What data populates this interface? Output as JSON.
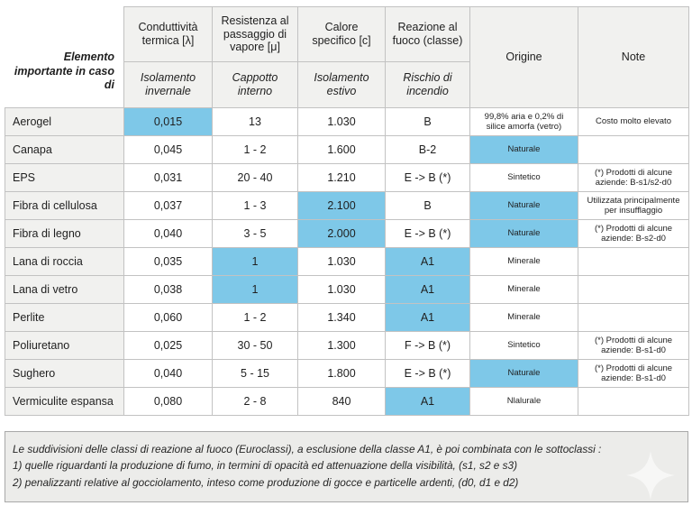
{
  "colors": {
    "highlight_blue": "#7ec8e8",
    "header_gray": "#f1f1ef",
    "border_gray": "#c2c2c2",
    "footer_gray": "#ececea"
  },
  "table": {
    "corner_label": "Elemento importante in caso di",
    "columns": [
      {
        "title": "Conduttività termica [λ]",
        "subtitle": "Isolamento invernale"
      },
      {
        "title": "Resistenza al passaggio di vapore [μ]",
        "subtitle": "Cappotto interno"
      },
      {
        "title": "Calore specifico [c]",
        "subtitle": "Isolamento estivo"
      },
      {
        "title": "Reazione al fuoco (classe)",
        "subtitle": "Rischio di incendio"
      },
      {
        "title": "Origine",
        "subtitle": ""
      },
      {
        "title": "Note",
        "subtitle": ""
      }
    ],
    "rows": [
      {
        "label": "Aerogel",
        "cells": [
          {
            "v": "0,015",
            "h": true
          },
          {
            "v": "13",
            "h": false
          },
          {
            "v": "1.030",
            "h": false
          },
          {
            "v": "B",
            "h": false
          },
          {
            "v": "99,8% aria e 0,2% di silice amorfa (vetro)",
            "h": false
          },
          {
            "v": "Costo molto elevato",
            "h": false
          }
        ]
      },
      {
        "label": "Canapa",
        "cells": [
          {
            "v": "0,045",
            "h": false
          },
          {
            "v": "1 - 2",
            "h": false
          },
          {
            "v": "1.600",
            "h": false
          },
          {
            "v": "B-2",
            "h": false
          },
          {
            "v": "Naturale",
            "h": true
          },
          {
            "v": "",
            "h": false
          }
        ]
      },
      {
        "label": "EPS",
        "cells": [
          {
            "v": "0,031",
            "h": false
          },
          {
            "v": "20 - 40",
            "h": false
          },
          {
            "v": "1.210",
            "h": false
          },
          {
            "v": "E -> B (*)",
            "h": false
          },
          {
            "v": "Sintetico",
            "h": false
          },
          {
            "v": "(*) Prodotti di alcune aziende: B-s1/s2-d0",
            "h": false
          }
        ]
      },
      {
        "label": "Fibra di cellulosa",
        "cells": [
          {
            "v": "0,037",
            "h": false
          },
          {
            "v": "1 - 3",
            "h": false
          },
          {
            "v": "2.100",
            "h": true
          },
          {
            "v": "B",
            "h": false
          },
          {
            "v": "Naturale",
            "h": true
          },
          {
            "v": "Utilizzata principalmente per insufflaggio",
            "h": false
          }
        ]
      },
      {
        "label": "Fibra di legno",
        "cells": [
          {
            "v": "0,040",
            "h": false
          },
          {
            "v": "3 - 5",
            "h": false
          },
          {
            "v": "2.000",
            "h": true
          },
          {
            "v": "E -> B (*)",
            "h": false
          },
          {
            "v": "Naturale",
            "h": true
          },
          {
            "v": "(*) Prodotti di alcune aziende: B-s2-d0",
            "h": false
          }
        ]
      },
      {
        "label": "Lana di roccia",
        "cells": [
          {
            "v": "0,035",
            "h": false
          },
          {
            "v": "1",
            "h": true
          },
          {
            "v": "1.030",
            "h": false
          },
          {
            "v": "A1",
            "h": true
          },
          {
            "v": "Minerale",
            "h": false
          },
          {
            "v": "",
            "h": false
          }
        ]
      },
      {
        "label": "Lana di vetro",
        "cells": [
          {
            "v": "0,038",
            "h": false
          },
          {
            "v": "1",
            "h": true
          },
          {
            "v": "1.030",
            "h": false
          },
          {
            "v": "A1",
            "h": true
          },
          {
            "v": "Minerale",
            "h": false
          },
          {
            "v": "",
            "h": false
          }
        ]
      },
      {
        "label": "Perlite",
        "cells": [
          {
            "v": "0,060",
            "h": false
          },
          {
            "v": "1 - 2",
            "h": false
          },
          {
            "v": "1.340",
            "h": false
          },
          {
            "v": "A1",
            "h": true
          },
          {
            "v": "Minerale",
            "h": false
          },
          {
            "v": "",
            "h": false
          }
        ]
      },
      {
        "label": "Poliuretano",
        "cells": [
          {
            "v": "0,025",
            "h": false
          },
          {
            "v": "30 - 50",
            "h": false
          },
          {
            "v": "1.300",
            "h": false
          },
          {
            "v": "F -> B (*)",
            "h": false
          },
          {
            "v": "Sintetico",
            "h": false
          },
          {
            "v": "(*) Prodotti di alcune aziende: B-s1-d0",
            "h": false
          }
        ]
      },
      {
        "label": "Sughero",
        "cells": [
          {
            "v": "0,040",
            "h": false
          },
          {
            "v": "5 - 15",
            "h": false
          },
          {
            "v": "1.800",
            "h": false
          },
          {
            "v": "E -> B (*)",
            "h": false
          },
          {
            "v": "Naturale",
            "h": true
          },
          {
            "v": "(*) Prodotti di alcune aziende: B-s1-d0",
            "h": false
          }
        ]
      },
      {
        "label": "Vermiculite espansa",
        "cells": [
          {
            "v": "0,080",
            "h": false
          },
          {
            "v": "2 - 8",
            "h": false
          },
          {
            "v": "840",
            "h": false
          },
          {
            "v": "A1",
            "h": true
          },
          {
            "v": "Nlalurale",
            "h": false
          },
          {
            "v": "",
            "h": false
          }
        ]
      }
    ]
  },
  "footer": {
    "lines": [
      "Le suddivisioni delle classi di reazione al fuoco (Euroclassi), a esclusione della classe A1, è poi combinata con le sottoclassi :",
      "1) quelle riguardanti la produzione di fumo, in termini di opacità ed attenuazione della visibilità, (s1, s2 e s3)",
      "2) penalizzanti relative al gocciolamento, inteso come produzione di gocce e particelle ardenti, (d0, d1 e d2)"
    ]
  },
  "icons": {
    "watermark": "four-point-star"
  }
}
